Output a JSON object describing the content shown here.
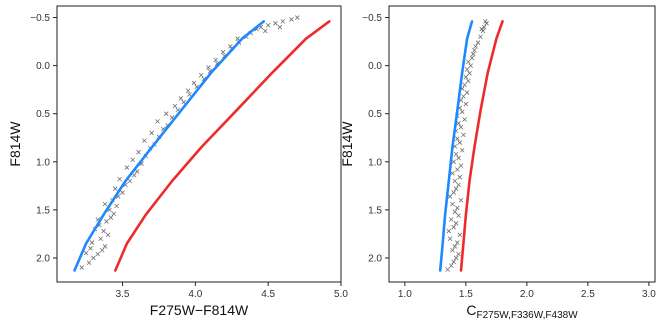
{
  "figure": {
    "panels_note": "two side-by-side color-magnitude style scatter panels"
  },
  "chart_data": [
    {
      "type": "scatter",
      "xlabel": "F275W−F814W",
      "ylabel": "F814W",
      "xlim": [
        3.05,
        5.0
      ],
      "ylim": [
        2.25,
        -0.62
      ],
      "y_inverted": true,
      "xticks": [
        3.5,
        4.0,
        4.5,
        5.0
      ],
      "xtick_labels": [
        "3.5",
        "4.0",
        "4.5",
        "5.0"
      ],
      "yticks": [
        -0.5,
        0.0,
        0.5,
        1.0,
        1.5,
        2.0
      ],
      "ytick_labels": [
        "−0.5",
        "0.0",
        "0.5",
        "1.0",
        "1.5",
        "2.0"
      ],
      "grid": false,
      "lines": [
        {
          "color": "#1f88ff",
          "x": [
            3.17,
            3.25,
            3.37,
            3.52,
            3.7,
            3.9,
            4.11,
            4.32,
            4.47
          ],
          "y": [
            2.13,
            1.85,
            1.55,
            1.2,
            0.85,
            0.47,
            0.07,
            -0.28,
            -0.46
          ]
        },
        {
          "color": "#ee2b2b",
          "x": [
            3.45,
            3.53,
            3.66,
            3.84,
            4.04,
            4.28,
            4.53,
            4.76,
            4.92
          ],
          "y": [
            2.13,
            1.85,
            1.55,
            1.2,
            0.85,
            0.47,
            0.07,
            -0.28,
            -0.46
          ]
        }
      ],
      "points": {
        "marker": "x",
        "color": "#555555",
        "x": [
          3.22,
          3.27,
          3.3,
          3.33,
          3.36,
          3.38,
          3.25,
          3.29,
          3.35,
          3.4,
          3.31,
          3.34,
          3.28,
          3.39,
          3.42,
          3.37,
          3.44,
          3.33,
          3.41,
          3.46,
          3.38,
          3.43,
          3.47,
          3.5,
          3.45,
          3.52,
          3.55,
          3.48,
          3.58,
          3.6,
          3.53,
          3.63,
          3.57,
          3.66,
          3.61,
          3.69,
          3.72,
          3.65,
          3.75,
          3.7,
          3.78,
          3.81,
          3.74,
          3.84,
          3.8,
          3.88,
          3.86,
          3.92,
          3.9,
          3.96,
          3.95,
          4.01,
          3.99,
          4.06,
          4.04,
          4.1,
          4.09,
          4.15,
          4.14,
          4.2,
          4.19,
          4.25,
          4.24,
          4.3,
          4.29,
          4.35,
          4.38,
          4.42,
          4.45,
          4.5,
          4.55,
          4.6,
          4.66,
          4.7,
          4.48,
          4.58
        ],
        "y": [
          2.1,
          2.05,
          2.0,
          1.96,
          1.92,
          1.88,
          1.95,
          1.84,
          1.8,
          1.76,
          1.7,
          1.66,
          1.9,
          1.62,
          1.58,
          1.72,
          1.54,
          1.6,
          1.5,
          1.46,
          1.44,
          1.4,
          1.36,
          1.32,
          1.28,
          1.24,
          1.2,
          1.18,
          1.14,
          1.1,
          1.06,
          1.02,
          0.98,
          0.94,
          0.9,
          0.86,
          0.82,
          0.78,
          0.74,
          0.7,
          0.66,
          0.62,
          0.58,
          0.54,
          0.5,
          0.46,
          0.42,
          0.38,
          0.34,
          0.3,
          0.26,
          0.22,
          0.18,
          0.14,
          0.1,
          0.06,
          0.02,
          -0.02,
          -0.06,
          -0.1,
          -0.14,
          -0.18,
          -0.2,
          -0.24,
          -0.28,
          -0.3,
          -0.34,
          -0.38,
          -0.4,
          -0.42,
          -0.44,
          -0.46,
          -0.48,
          -0.5,
          -0.36,
          -0.4
        ]
      }
    },
    {
      "type": "scatter",
      "xlabel": "C",
      "xlabel_subscript": "F275W,F336W,F438W",
      "ylabel": "F814W",
      "xlim": [
        0.87,
        3.05
      ],
      "ylim": [
        2.25,
        -0.62
      ],
      "y_inverted": true,
      "xticks": [
        1.0,
        1.5,
        2.0,
        2.5,
        3.0
      ],
      "xtick_labels": [
        "1.0",
        "1.5",
        "2.0",
        "2.5",
        "3.0"
      ],
      "yticks": [
        -0.5,
        0.0,
        0.5,
        1.0,
        1.5,
        2.0
      ],
      "ytick_labels": [
        "−0.5",
        "0.0",
        "0.5",
        "1.0",
        "1.5",
        "2.0"
      ],
      "grid": false,
      "lines": [
        {
          "color": "#1f88ff",
          "x": [
            1.29,
            1.31,
            1.33,
            1.36,
            1.39,
            1.43,
            1.47,
            1.51,
            1.55
          ],
          "y": [
            2.13,
            1.85,
            1.55,
            1.2,
            0.85,
            0.47,
            0.07,
            -0.28,
            -0.46
          ]
        },
        {
          "color": "#ee2b2b",
          "x": [
            1.46,
            1.48,
            1.5,
            1.53,
            1.57,
            1.62,
            1.68,
            1.75,
            1.8
          ],
          "y": [
            2.13,
            1.85,
            1.55,
            1.2,
            0.85,
            0.47,
            0.07,
            -0.28,
            -0.46
          ]
        }
      ],
      "points": {
        "marker": "x",
        "color": "#555555",
        "x": [
          1.35,
          1.38,
          1.4,
          1.42,
          1.44,
          1.39,
          1.41,
          1.43,
          1.37,
          1.45,
          1.36,
          1.4,
          1.42,
          1.38,
          1.44,
          1.41,
          1.43,
          1.39,
          1.46,
          1.37,
          1.4,
          1.42,
          1.44,
          1.41,
          1.45,
          1.39,
          1.43,
          1.46,
          1.4,
          1.44,
          1.42,
          1.47,
          1.41,
          1.45,
          1.43,
          1.48,
          1.42,
          1.46,
          1.44,
          1.49,
          1.43,
          1.47,
          1.45,
          1.5,
          1.46,
          1.48,
          1.51,
          1.47,
          1.49,
          1.52,
          1.5,
          1.53,
          1.51,
          1.54,
          1.52,
          1.55,
          1.56,
          1.57,
          1.58,
          1.6,
          1.62,
          1.64,
          1.65,
          1.67,
          1.63,
          1.66
        ],
        "y": [
          2.12,
          2.08,
          2.04,
          2.0,
          1.96,
          1.92,
          1.88,
          1.84,
          1.8,
          1.76,
          1.72,
          1.68,
          1.64,
          1.6,
          1.56,
          1.52,
          1.48,
          1.44,
          1.4,
          1.36,
          1.32,
          1.28,
          1.24,
          1.2,
          1.16,
          1.12,
          1.08,
          1.04,
          1.0,
          0.96,
          0.92,
          0.88,
          0.84,
          0.8,
          0.76,
          0.72,
          0.68,
          0.64,
          0.6,
          0.56,
          0.52,
          0.48,
          0.44,
          0.4,
          0.36,
          0.32,
          0.28,
          0.24,
          0.2,
          0.16,
          0.12,
          0.08,
          0.04,
          0.0,
          -0.04,
          -0.08,
          -0.12,
          -0.16,
          -0.2,
          -0.24,
          -0.3,
          -0.36,
          -0.4,
          -0.44,
          -0.38,
          -0.46
        ]
      }
    }
  ]
}
